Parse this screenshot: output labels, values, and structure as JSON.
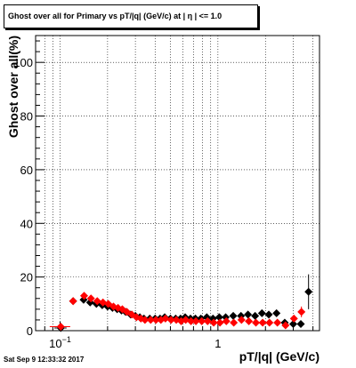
{
  "chart_data": {
    "type": "scatter",
    "title": "Ghost over all for Primary vs pT/|q| (GeV/c) at |  η | <= 1.0",
    "xlabel": "pT/|q| (GeV/c)",
    "ylabel": "Ghost over all(%)",
    "xscale": "log",
    "xlim": [
      0.07,
      4.4
    ],
    "ylim": [
      0,
      110
    ],
    "x_ticks": [
      {
        "value": 0.1,
        "label": "10^-1"
      },
      {
        "value": 1,
        "label": "1"
      }
    ],
    "y_ticks": [
      0,
      20,
      40,
      60,
      80,
      100
    ],
    "grid": true,
    "series": [
      {
        "color": "#000000",
        "marker": "diamond",
        "points": [
          {
            "x": 0.101,
            "y": 1.0,
            "xerr_lo": 0.009,
            "xerr_hi": 0.009,
            "yerr": 1.0
          },
          {
            "x": 0.121,
            "y": 11.0,
            "xerr_lo": 0.004,
            "xerr_hi": 0.004,
            "yerr": 1.0
          },
          {
            "x": 0.141,
            "y": 11.5
          },
          {
            "x": 0.155,
            "y": 10.5
          },
          {
            "x": 0.17,
            "y": 10.0
          },
          {
            "x": 0.185,
            "y": 9.5
          },
          {
            "x": 0.2,
            "y": 9.0
          },
          {
            "x": 0.215,
            "y": 8.5
          },
          {
            "x": 0.23,
            "y": 8.0
          },
          {
            "x": 0.245,
            "y": 7.5
          },
          {
            "x": 0.26,
            "y": 7.0
          },
          {
            "x": 0.28,
            "y": 6.0
          },
          {
            "x": 0.3,
            "y": 5.5
          },
          {
            "x": 0.32,
            "y": 5.0
          },
          {
            "x": 0.34,
            "y": 4.5
          },
          {
            "x": 0.37,
            "y": 4.5
          },
          {
            "x": 0.4,
            "y": 4.5
          },
          {
            "x": 0.43,
            "y": 4.5
          },
          {
            "x": 0.46,
            "y": 5.0
          },
          {
            "x": 0.5,
            "y": 4.5
          },
          {
            "x": 0.54,
            "y": 4.5
          },
          {
            "x": 0.58,
            "y": 4.5
          },
          {
            "x": 0.62,
            "y": 5.0
          },
          {
            "x": 0.67,
            "y": 4.5
          },
          {
            "x": 0.72,
            "y": 4.5
          },
          {
            "x": 0.78,
            "y": 4.5
          },
          {
            "x": 0.85,
            "y": 5.0
          },
          {
            "x": 0.93,
            "y": 4.5
          },
          {
            "x": 1.02,
            "y": 5.0
          },
          {
            "x": 1.12,
            "y": 5.0
          },
          {
            "x": 1.25,
            "y": 5.5
          },
          {
            "x": 1.4,
            "y": 5.5
          },
          {
            "x": 1.55,
            "y": 6.0
          },
          {
            "x": 1.72,
            "y": 5.5
          },
          {
            "x": 1.9,
            "y": 6.5
          },
          {
            "x": 2.1,
            "y": 6.0
          },
          {
            "x": 2.35,
            "y": 6.5
          },
          {
            "x": 2.65,
            "y": 3.0
          },
          {
            "x": 3.0,
            "y": 2.5
          },
          {
            "x": 3.35,
            "y": 2.5
          },
          {
            "x": 3.75,
            "y": 14.5,
            "yerr": 6.5
          }
        ]
      },
      {
        "color": "#ff0000",
        "marker": "diamond",
        "points": [
          {
            "x": 0.101,
            "y": 1.5,
            "xerr_lo": 0.015,
            "xerr_hi": 0.015,
            "yerr": 1.0
          },
          {
            "x": 0.121,
            "y": 11.0,
            "yerr": 1.0
          },
          {
            "x": 0.142,
            "y": 13.0
          },
          {
            "x": 0.157,
            "y": 12.0
          },
          {
            "x": 0.172,
            "y": 11.0
          },
          {
            "x": 0.187,
            "y": 10.5
          },
          {
            "x": 0.202,
            "y": 10.0
          },
          {
            "x": 0.218,
            "y": 9.0
          },
          {
            "x": 0.233,
            "y": 8.5
          },
          {
            "x": 0.248,
            "y": 8.0
          },
          {
            "x": 0.265,
            "y": 7.0
          },
          {
            "x": 0.285,
            "y": 6.0
          },
          {
            "x": 0.305,
            "y": 5.0
          },
          {
            "x": 0.325,
            "y": 4.5
          },
          {
            "x": 0.345,
            "y": 4.0
          },
          {
            "x": 0.375,
            "y": 4.0
          },
          {
            "x": 0.405,
            "y": 4.0
          },
          {
            "x": 0.435,
            "y": 4.0
          },
          {
            "x": 0.465,
            "y": 4.5
          },
          {
            "x": 0.505,
            "y": 4.0
          },
          {
            "x": 0.545,
            "y": 4.0
          },
          {
            "x": 0.585,
            "y": 3.5
          },
          {
            "x": 0.625,
            "y": 4.0
          },
          {
            "x": 0.675,
            "y": 3.5
          },
          {
            "x": 0.725,
            "y": 3.5
          },
          {
            "x": 0.79,
            "y": 3.5
          },
          {
            "x": 0.86,
            "y": 3.5
          },
          {
            "x": 0.94,
            "y": 3.0
          },
          {
            "x": 1.03,
            "y": 3.0
          },
          {
            "x": 1.13,
            "y": 3.5
          },
          {
            "x": 1.26,
            "y": 3.0
          },
          {
            "x": 1.41,
            "y": 4.0
          },
          {
            "x": 1.57,
            "y": 3.5
          },
          {
            "x": 1.74,
            "y": 3.0
          },
          {
            "x": 1.92,
            "y": 3.0
          },
          {
            "x": 2.12,
            "y": 3.0
          },
          {
            "x": 2.38,
            "y": 3.0
          },
          {
            "x": 2.68,
            "y": 2.0
          },
          {
            "x": 3.03,
            "y": 4.5
          },
          {
            "x": 3.38,
            "y": 7.0,
            "yerr": 2.0
          }
        ]
      }
    ]
  },
  "timestamp": "Sat Sep  9 12:33:32 2017"
}
